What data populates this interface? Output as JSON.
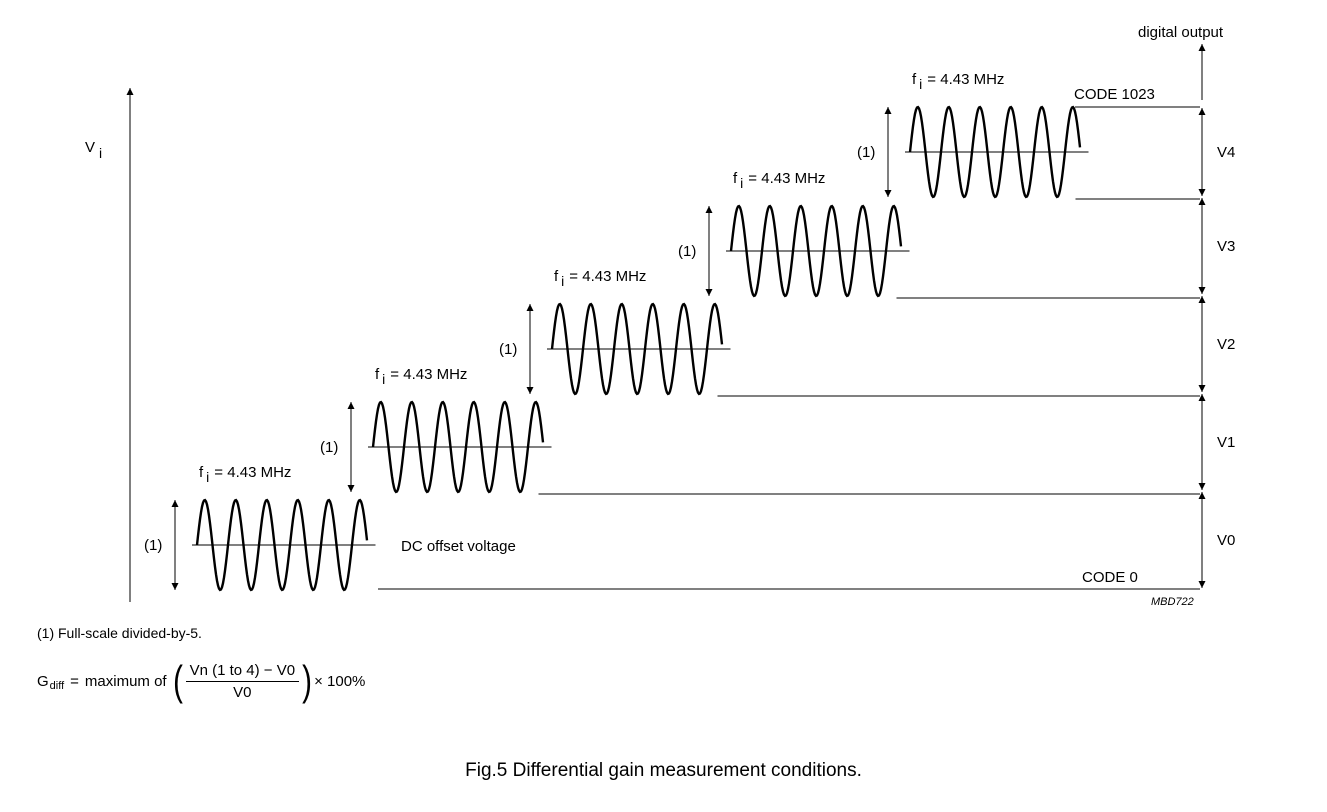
{
  "diagram": {
    "vertical_axis_label": "Vi",
    "output_axis_label": "digital output",
    "frequency_label": "fi = 4.43 MHz",
    "amplitude_marker": "(1)",
    "dc_offset_label": "DC offset voltage",
    "code_top": "CODE 1023",
    "code_bottom": "CODE 0",
    "levels": [
      "V0",
      "V1",
      "V2",
      "V3",
      "V4"
    ],
    "figure_id": "MBD722"
  },
  "notes": {
    "footnote": "(1) Full-scale divided-by-5.",
    "formula": {
      "lhs": "G",
      "lhs_subscript": "diff",
      "equals": "=",
      "prefix": "maximum of",
      "numerator": "Vn (1 to 4) − V0",
      "denominator": "V0",
      "suffix": "× 100%"
    }
  },
  "caption": "Fig.5 Differential gain measurement conditions."
}
